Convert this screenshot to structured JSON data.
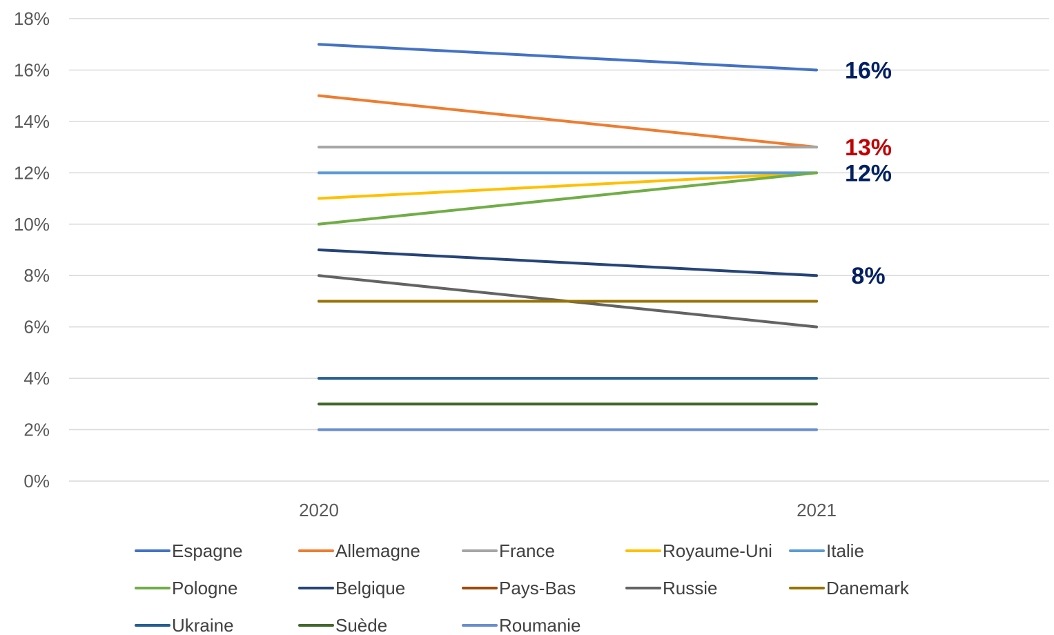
{
  "chart_data": {
    "type": "line",
    "title": "",
    "xlabel": "",
    "ylabel": "",
    "categories": [
      "2020",
      "2021"
    ],
    "ylim": [
      0,
      18
    ],
    "y_ticks": [
      "0%",
      "2%",
      "4%",
      "6%",
      "8%",
      "10%",
      "12%",
      "14%",
      "16%",
      "18%"
    ],
    "grid": true,
    "legend_position": "bottom",
    "series": [
      {
        "name": "Espagne",
        "values": [
          17,
          16
        ],
        "color": "#4472C4"
      },
      {
        "name": "Allemagne",
        "values": [
          15,
          13
        ],
        "color": "#ED7D31"
      },
      {
        "name": "France",
        "values": [
          13,
          13
        ],
        "color": "#A5A5A5"
      },
      {
        "name": "Royaume-Uni",
        "values": [
          11,
          12
        ],
        "color": "#FFC000"
      },
      {
        "name": "Italie",
        "values": [
          12,
          12
        ],
        "color": "#5B9BD5"
      },
      {
        "name": "Pologne",
        "values": [
          10,
          12
        ],
        "color": "#70AD47"
      },
      {
        "name": "Belgique",
        "values": [
          9,
          8
        ],
        "color": "#264478"
      },
      {
        "name": "Pays-Bas",
        "values": [
          7,
          7
        ],
        "color": "#9E480E"
      },
      {
        "name": "Russie",
        "values": [
          8,
          6
        ],
        "color": "#636363"
      },
      {
        "name": "Danemark",
        "values": [
          7,
          7
        ],
        "color": "#997300"
      },
      {
        "name": "Ukraine",
        "values": [
          4,
          4
        ],
        "color": "#255E91"
      },
      {
        "name": "Suède",
        "values": [
          3,
          3
        ],
        "color": "#43682B"
      },
      {
        "name": "Roumanie",
        "values": [
          2,
          2
        ],
        "color": "#698ED0"
      }
    ],
    "annotations": [
      {
        "text": "16%",
        "y": 16,
        "color": "#002060"
      },
      {
        "text": "13%",
        "y": 13,
        "color": "#C00000"
      },
      {
        "text": "12%",
        "y": 12,
        "color": "#002060"
      },
      {
        "text": "8%",
        "y": 8,
        "color": "#002060"
      }
    ]
  }
}
